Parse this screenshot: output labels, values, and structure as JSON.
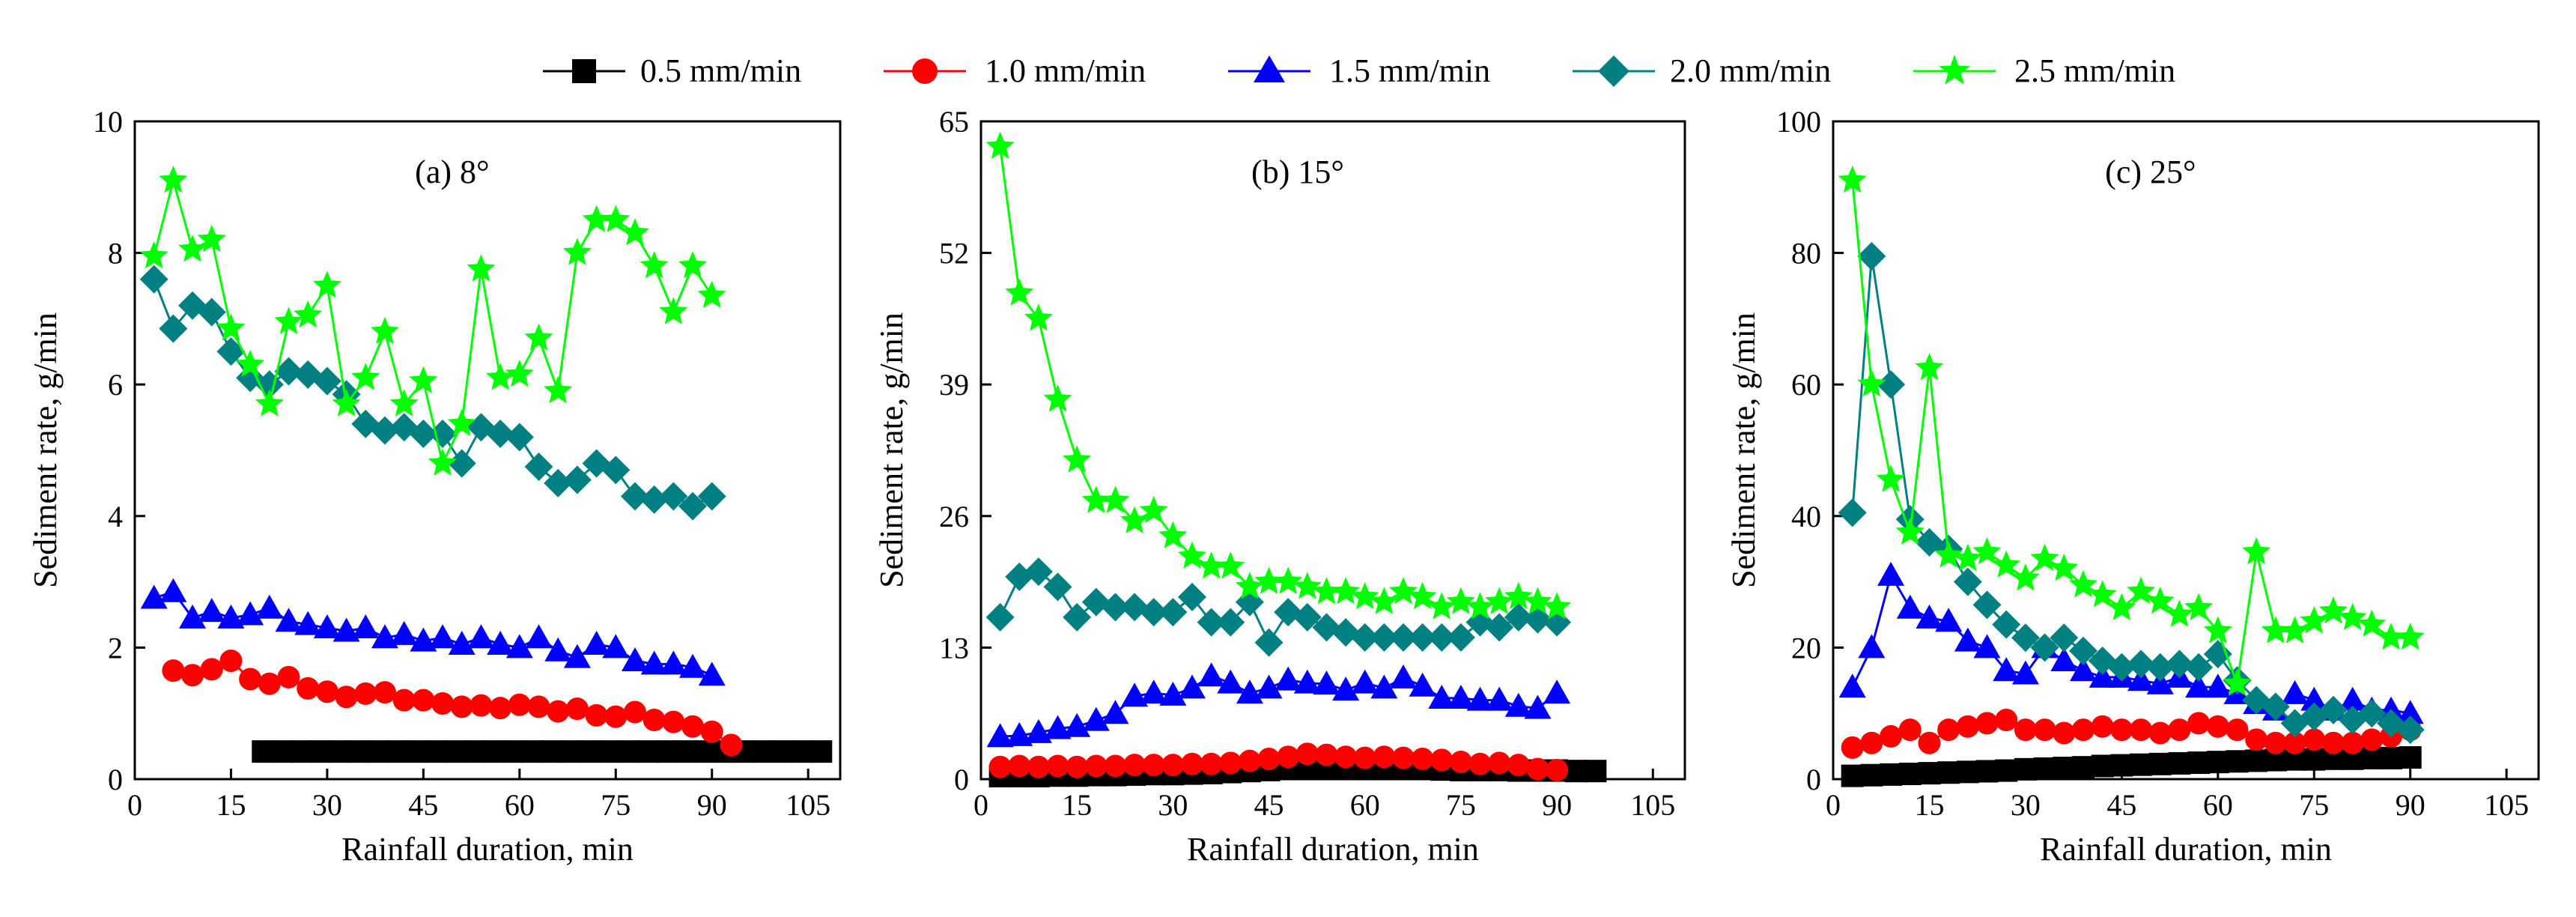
{
  "legend": [
    {
      "label": "0.5 mm/min",
      "color": "#000000",
      "marker": "square"
    },
    {
      "label": "1.0 mm/min",
      "color": "#ff0000",
      "marker": "circle"
    },
    {
      "label": "1.5 mm/min",
      "color": "#0000ff",
      "marker": "triangle"
    },
    {
      "label": "2.0 mm/min",
      "color": "#008080",
      "marker": "diamond"
    },
    {
      "label": "2.5 mm/min",
      "color": "#00ff00",
      "marker": "star"
    }
  ],
  "chart_data": [
    {
      "type": "line",
      "title": "(a) 8°",
      "xlabel": "Rainfall duration, min",
      "ylabel": "Sediment rate, g/min",
      "xlim": [
        0,
        110
      ],
      "ylim": [
        0,
        10
      ],
      "xticks": [
        0,
        15,
        30,
        45,
        60,
        75,
        90,
        105
      ],
      "yticks": [
        0,
        2,
        4,
        6,
        8,
        10
      ],
      "series": [
        {
          "name": "0.5 mm/min",
          "x": [
            20,
            23,
            26,
            29,
            32,
            35,
            38,
            41,
            44,
            47,
            50,
            53,
            56,
            59,
            62,
            65,
            68,
            71,
            74,
            77,
            80,
            83,
            86,
            89,
            92,
            95,
            98,
            101,
            104,
            107
          ],
          "y": [
            0.42,
            0.42,
            0.42,
            0.42,
            0.42,
            0.42,
            0.42,
            0.42,
            0.42,
            0.42,
            0.42,
            0.42,
            0.42,
            0.42,
            0.42,
            0.42,
            0.42,
            0.42,
            0.42,
            0.42,
            0.42,
            0.42,
            0.42,
            0.42,
            0.42,
            0.42,
            0.42,
            0.42,
            0.42,
            0.42
          ]
        },
        {
          "name": "1.0 mm/min",
          "x": [
            6,
            9,
            12,
            15,
            18,
            21,
            24,
            27,
            30,
            33,
            36,
            39,
            42,
            45,
            48,
            51,
            54,
            57,
            60,
            63,
            66,
            69,
            72,
            75,
            78,
            81,
            84,
            87,
            90,
            93
          ],
          "y": [
            1.65,
            1.58,
            1.67,
            1.8,
            1.52,
            1.45,
            1.55,
            1.38,
            1.33,
            1.25,
            1.3,
            1.32,
            1.2,
            1.2,
            1.15,
            1.1,
            1.12,
            1.08,
            1.13,
            1.1,
            1.03,
            1.07,
            0.97,
            0.95,
            1.02,
            0.9,
            0.87,
            0.8,
            0.72,
            0.52
          ]
        },
        {
          "name": "1.5 mm/min",
          "x": [
            3,
            6,
            9,
            12,
            15,
            18,
            21,
            24,
            27,
            30,
            33,
            36,
            39,
            42,
            45,
            48,
            51,
            54,
            57,
            60,
            63,
            66,
            69,
            72,
            75,
            78,
            81,
            84,
            87,
            90
          ],
          "y": [
            2.75,
            2.85,
            2.45,
            2.55,
            2.45,
            2.5,
            2.6,
            2.4,
            2.35,
            2.3,
            2.25,
            2.3,
            2.15,
            2.2,
            2.1,
            2.15,
            2.05,
            2.15,
            2.05,
            2.0,
            2.15,
            1.95,
            1.85,
            2.05,
            2.0,
            1.8,
            1.75,
            1.75,
            1.7,
            1.58
          ]
        },
        {
          "name": "2.0 mm/min",
          "x": [
            3,
            6,
            9,
            12,
            15,
            18,
            21,
            24,
            27,
            30,
            33,
            36,
            39,
            42,
            45,
            48,
            51,
            54,
            57,
            60,
            63,
            66,
            69,
            72,
            75,
            78,
            81,
            84,
            87,
            90
          ],
          "y": [
            7.6,
            6.85,
            7.2,
            7.1,
            6.5,
            6.1,
            6.0,
            6.2,
            6.15,
            6.05,
            5.85,
            5.4,
            5.3,
            5.35,
            5.25,
            5.25,
            4.8,
            5.35,
            5.25,
            5.2,
            4.75,
            4.5,
            4.55,
            4.8,
            4.7,
            4.3,
            4.25,
            4.3,
            4.15,
            4.3
          ]
        },
        {
          "name": "2.5 mm/min",
          "x": [
            3,
            6,
            9,
            12,
            15,
            18,
            21,
            24,
            27,
            30,
            33,
            36,
            39,
            42,
            45,
            48,
            51,
            54,
            57,
            60,
            63,
            66,
            69,
            72,
            75,
            78,
            81,
            84,
            87,
            90
          ],
          "y": [
            7.95,
            9.1,
            8.05,
            8.2,
            6.85,
            6.3,
            5.7,
            6.95,
            7.05,
            7.5,
            5.7,
            6.1,
            6.8,
            5.7,
            6.05,
            4.8,
            5.4,
            7.75,
            6.1,
            6.15,
            6.7,
            5.9,
            8.0,
            8.5,
            8.5,
            8.3,
            7.8,
            7.1,
            7.8,
            7.35
          ]
        }
      ]
    },
    {
      "type": "line",
      "title": "(b) 15°",
      "xlabel": "Rainfall duration, min",
      "ylabel": "Sediment rate, g/min",
      "xlim": [
        0,
        110
      ],
      "ylim": [
        0,
        65
      ],
      "xticks": [
        0,
        15,
        30,
        45,
        60,
        75,
        90,
        105
      ],
      "yticks": [
        0,
        13,
        26,
        39,
        52,
        65
      ],
      "series": [
        {
          "name": "0.5 mm/min",
          "x": [
            3,
            6,
            9,
            12,
            15,
            18,
            21,
            24,
            27,
            30,
            33,
            36,
            39,
            42,
            45,
            48,
            51,
            54,
            57,
            60,
            63,
            66,
            69,
            72,
            75,
            78,
            81,
            84,
            87,
            90,
            93,
            96
          ],
          "y": [
            0.3,
            0.3,
            0.3,
            0.35,
            0.35,
            0.4,
            0.4,
            0.45,
            0.5,
            0.5,
            0.55,
            0.6,
            0.7,
            0.8,
            0.9,
            1.0,
            1.1,
            1.2,
            1.2,
            1.1,
            1.05,
            1.0,
            1.0,
            0.95,
            0.9,
            0.9,
            0.9,
            0.85,
            0.85,
            0.85,
            0.8,
            0.8
          ]
        },
        {
          "name": "1.0 mm/min",
          "x": [
            3,
            6,
            9,
            12,
            15,
            18,
            21,
            24,
            27,
            30,
            33,
            36,
            39,
            42,
            45,
            48,
            51,
            54,
            57,
            60,
            63,
            66,
            69,
            72,
            75,
            78,
            81,
            84,
            87,
            90
          ],
          "y": [
            1.2,
            1.3,
            1.2,
            1.3,
            1.2,
            1.3,
            1.3,
            1.4,
            1.4,
            1.4,
            1.5,
            1.5,
            1.6,
            1.8,
            2.0,
            2.2,
            2.5,
            2.4,
            2.2,
            2.1,
            2.2,
            2.1,
            2.0,
            1.9,
            1.7,
            1.5,
            1.6,
            1.4,
            1.0,
            0.9
          ]
        },
        {
          "name": "1.5 mm/min",
          "x": [
            3,
            6,
            9,
            12,
            15,
            18,
            21,
            24,
            27,
            30,
            33,
            36,
            39,
            42,
            45,
            48,
            51,
            54,
            57,
            60,
            63,
            66,
            69,
            72,
            75,
            78,
            81,
            84,
            87,
            90
          ],
          "y": [
            4.2,
            4.3,
            4.6,
            5.0,
            5.2,
            5.8,
            6.5,
            8.2,
            8.5,
            8.3,
            9.0,
            10.2,
            9.5,
            8.5,
            9.0,
            9.8,
            9.5,
            9.4,
            8.8,
            9.5,
            9.0,
            10.0,
            9.2,
            8.0,
            8.0,
            7.8,
            7.8,
            7.2,
            7.0,
            8.5
          ]
        },
        {
          "name": "2.0 mm/min",
          "x": [
            3,
            6,
            9,
            12,
            15,
            18,
            21,
            24,
            27,
            30,
            33,
            36,
            39,
            42,
            45,
            48,
            51,
            54,
            57,
            60,
            63,
            66,
            69,
            72,
            75,
            78,
            81,
            84,
            87,
            90
          ],
          "y": [
            16.0,
            20.0,
            20.5,
            19.0,
            16.0,
            17.5,
            17.0,
            17.0,
            16.5,
            16.5,
            18.0,
            15.5,
            15.5,
            17.5,
            13.5,
            16.5,
            16.0,
            15.0,
            14.5,
            14.0,
            14.0,
            14.0,
            14.0,
            14.0,
            14.0,
            15.5,
            15.0,
            16.0,
            15.8,
            15.5
          ]
        },
        {
          "name": "2.5 mm/min",
          "x": [
            3,
            6,
            9,
            12,
            15,
            18,
            21,
            24,
            27,
            30,
            33,
            36,
            39,
            42,
            45,
            48,
            51,
            54,
            57,
            60,
            63,
            66,
            69,
            72,
            75,
            78,
            81,
            84,
            87,
            90
          ],
          "y": [
            62.5,
            48.0,
            45.5,
            37.5,
            31.5,
            27.5,
            27.5,
            25.5,
            26.5,
            24.0,
            22.0,
            21.0,
            21.0,
            19.0,
            19.5,
            19.5,
            19.0,
            18.5,
            18.5,
            18.0,
            17.5,
            18.5,
            18.0,
            17.0,
            17.5,
            17.0,
            17.5,
            18.0,
            17.5,
            17.0
          ]
        }
      ]
    },
    {
      "type": "line",
      "title": "(c) 25°",
      "xlabel": "Rainfall duration, min",
      "ylabel": "Sediment rate, g/min",
      "xlim": [
        0,
        110
      ],
      "ylim": [
        0,
        100
      ],
      "xticks": [
        0,
        15,
        30,
        45,
        60,
        75,
        90,
        105
      ],
      "yticks": [
        0,
        20,
        40,
        60,
        80,
        100
      ],
      "series": [
        {
          "name": "0.5 mm/min",
          "x": [
            3,
            6,
            9,
            12,
            15,
            18,
            21,
            24,
            27,
            30,
            33,
            36,
            39,
            42,
            45,
            48,
            51,
            54,
            57,
            60,
            63,
            66,
            69,
            72,
            75,
            78,
            81,
            84,
            87,
            90
          ],
          "y": [
            0.5,
            0.6,
            0.7,
            0.8,
            0.9,
            1.0,
            1.1,
            1.2,
            1.3,
            1.5,
            1.6,
            1.7,
            1.8,
            2.0,
            2.1,
            2.2,
            2.3,
            2.4,
            2.5,
            2.6,
            2.7,
            2.8,
            2.9,
            3.0,
            3.0,
            3.1,
            3.1,
            3.2,
            3.2,
            3.3
          ]
        },
        {
          "name": "1.0 mm/min",
          "x": [
            3,
            6,
            9,
            12,
            15,
            18,
            21,
            24,
            27,
            30,
            33,
            36,
            39,
            42,
            45,
            48,
            51,
            54,
            57,
            60,
            63,
            66,
            69,
            72,
            75,
            78,
            81,
            84,
            87,
            90
          ],
          "y": [
            4.8,
            5.5,
            6.5,
            7.5,
            5.5,
            7.5,
            8.0,
            8.5,
            9.0,
            7.5,
            7.5,
            7.0,
            7.5,
            8.0,
            7.5,
            7.5,
            7.0,
            7.5,
            8.5,
            8.0,
            7.5,
            6.0,
            5.5,
            5.5,
            6.0,
            5.5,
            5.5,
            6.0,
            6.5,
            7.5
          ]
        },
        {
          "name": "1.5 mm/min",
          "x": [
            3,
            6,
            9,
            12,
            15,
            18,
            21,
            24,
            27,
            30,
            33,
            36,
            39,
            42,
            45,
            48,
            51,
            54,
            57,
            60,
            63,
            66,
            69,
            72,
            75,
            78,
            81,
            84,
            87,
            90
          ],
          "y": [
            14.0,
            20.0,
            31.0,
            26.0,
            24.5,
            24.0,
            21.0,
            20.0,
            16.5,
            16.0,
            20.0,
            18.0,
            16.5,
            15.5,
            15.5,
            15.0,
            14.5,
            15.5,
            14.0,
            14.0,
            13.0,
            11.5,
            10.5,
            13.0,
            12.0,
            10.5,
            12.0,
            10.5,
            10.5,
            10.0
          ]
        },
        {
          "name": "2.0 mm/min",
          "x": [
            3,
            6,
            9,
            12,
            15,
            18,
            21,
            24,
            27,
            30,
            33,
            36,
            39,
            42,
            45,
            48,
            51,
            54,
            57,
            60,
            63,
            66,
            69,
            72,
            75,
            78,
            81,
            84,
            87,
            90
          ],
          "y": [
            40.5,
            79.5,
            60.0,
            39.5,
            36.0,
            35.0,
            30.0,
            26.5,
            23.5,
            21.5,
            20.0,
            21.5,
            19.5,
            18.0,
            17.0,
            17.5,
            17.0,
            17.5,
            17.0,
            19.0,
            15.0,
            12.0,
            11.0,
            8.5,
            9.5,
            10.5,
            9.0,
            10.0,
            8.5,
            7.5
          ]
        },
        {
          "name": "2.5 mm/min",
          "x": [
            3,
            6,
            9,
            12,
            15,
            18,
            21,
            24,
            27,
            30,
            33,
            36,
            39,
            42,
            45,
            48,
            51,
            54,
            57,
            60,
            63,
            66,
            69,
            72,
            75,
            78,
            81,
            84,
            87,
            90
          ],
          "y": [
            91.0,
            60.0,
            45.5,
            37.5,
            62.5,
            34.0,
            33.5,
            34.5,
            32.5,
            30.5,
            33.5,
            32.0,
            29.5,
            28.0,
            26.0,
            28.5,
            27.0,
            25.0,
            26.0,
            22.5,
            14.5,
            34.5,
            22.5,
            22.5,
            24.0,
            25.5,
            24.5,
            23.5,
            21.5,
            21.5
          ]
        }
      ]
    }
  ]
}
